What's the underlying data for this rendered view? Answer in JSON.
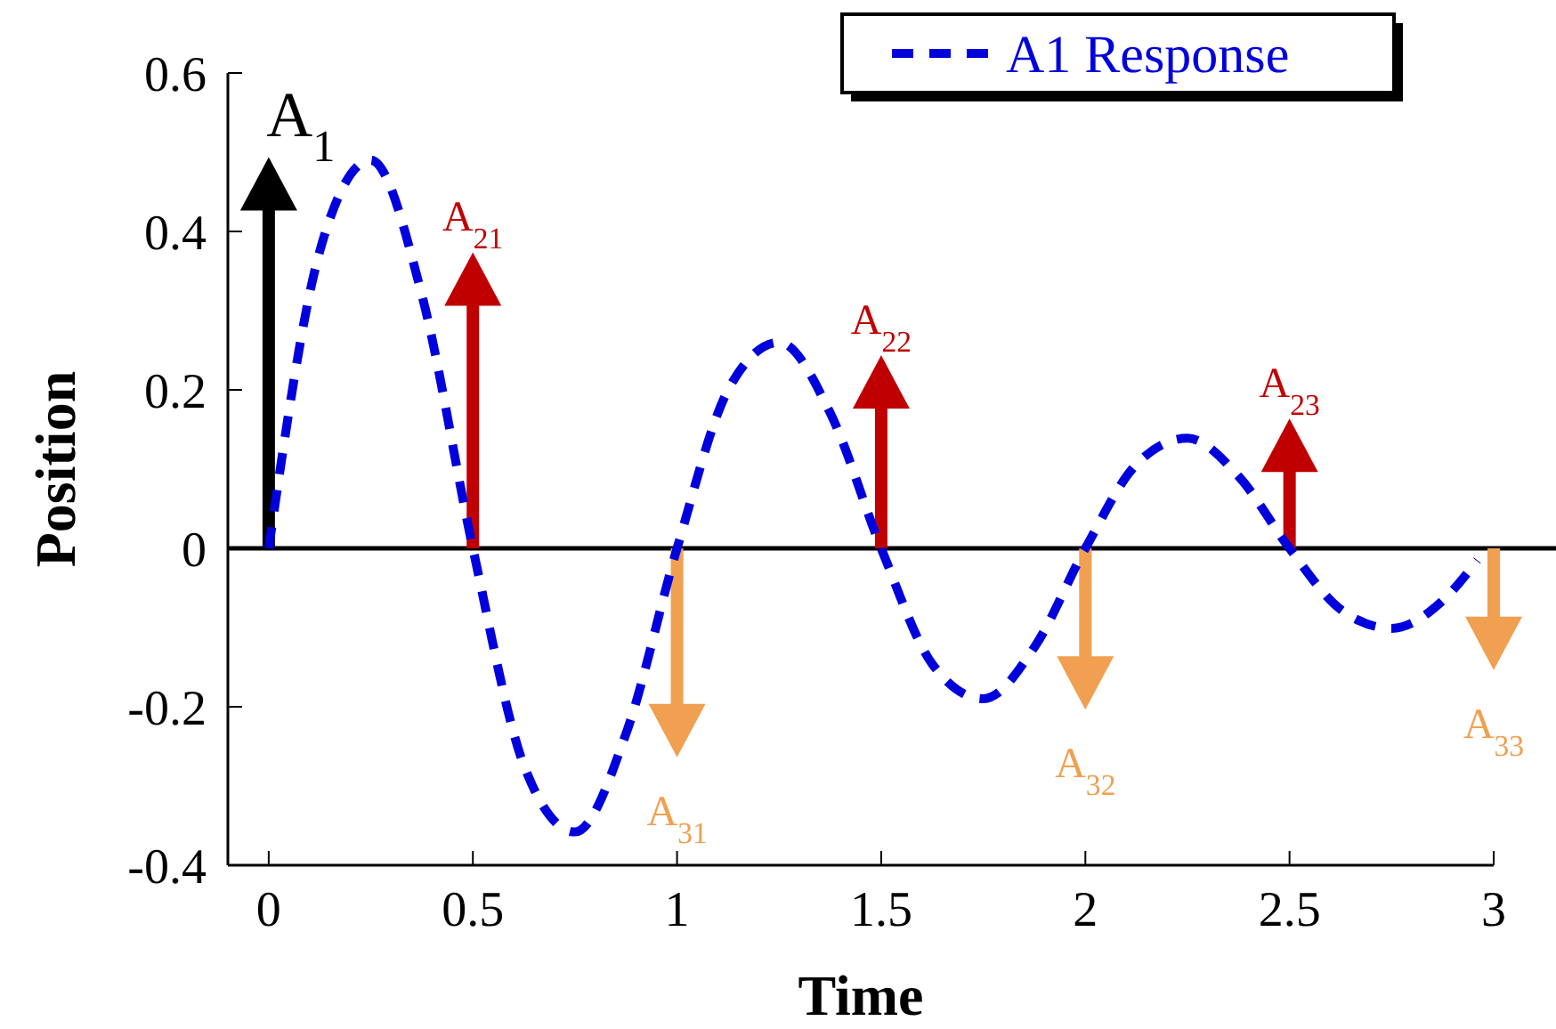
{
  "chart_data": {
    "type": "line",
    "xlabel": "Time",
    "ylabel": "Position",
    "xlim": [
      -0.1,
      3
    ],
    "ylim": [
      -0.4,
      0.6
    ],
    "xticks": [
      0,
      0.5,
      1,
      1.5,
      2,
      2.5,
      3
    ],
    "yticks": [
      -0.4,
      -0.2,
      0,
      0.2,
      0.4,
      0.6
    ],
    "grid": false,
    "legend": "top right",
    "ref_lines": [
      {
        "axis": "y",
        "value": 0,
        "color": "#000000"
      }
    ],
    "series": [
      {
        "name": "A1 Response",
        "color": "#0000dd",
        "line_style": "dashed",
        "x": [
          0,
          0.125,
          0.25,
          0.375,
          0.5,
          0.625,
          0.75,
          0.875,
          1,
          1.125,
          1.25,
          1.375,
          1.5,
          1.625,
          1.75,
          1.875,
          2,
          2.125,
          2.25,
          2.375,
          2.5,
          2.625,
          2.75,
          2.875,
          2.96
        ],
        "values": [
          0,
          0.375,
          0.49,
          0.32,
          0,
          -0.274,
          -0.358,
          -0.234,
          0,
          0.2,
          0.26,
          0.171,
          0,
          -0.146,
          -0.19,
          -0.125,
          0,
          0.106,
          0.139,
          0.091,
          0,
          -0.077,
          -0.101,
          -0.066,
          -0.015
        ]
      },
      {
        "name": "A$_{1}$",
        "type": "lollipop",
        "color": "#000000",
        "marker": "triangle",
        "x": [
          0
        ],
        "values": [
          0.46
        ]
      },
      {
        "name": "A$_{21}$",
        "type": "lollipop",
        "color": "#c00000",
        "marker": "triangle",
        "x": [
          0.5
        ],
        "values": [
          0.34
        ]
      },
      {
        "name": "A$_{22}$",
        "type": "lollipop",
        "color": "#c00000",
        "marker": "triangle",
        "x": [
          1.5
        ],
        "values": [
          0.21
        ]
      },
      {
        "name": "A$_{23}$",
        "type": "lollipop",
        "color": "#c00000",
        "marker": "triangle",
        "x": [
          2.5
        ],
        "values": [
          0.13
        ]
      },
      {
        "name": "A$_{31}$",
        "type": "lollipop",
        "color": "#f0a050",
        "marker": "triangle",
        "x": [
          1
        ],
        "values": [
          -0.23
        ]
      },
      {
        "name": "A$_{32}$",
        "type": "lollipop",
        "color": "#f0a050",
        "marker": "triangle",
        "x": [
          2
        ],
        "values": [
          -0.17
        ]
      },
      {
        "name": "A$_{33}$",
        "type": "lollipop",
        "color": "#f0a050",
        "marker": "triangle",
        "x": [
          3
        ],
        "values": [
          -0.12
        ]
      }
    ]
  }
}
